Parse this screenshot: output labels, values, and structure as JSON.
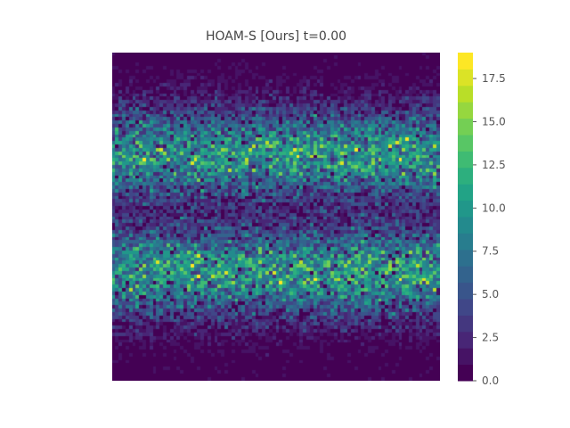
{
  "chart_data": {
    "type": "heatmap",
    "title": "HOAM-S [Ours] t=0.00",
    "xlabel": "",
    "ylabel": "",
    "grid_size": [
      96,
      96
    ],
    "pattern": "two horizontal noisy bands of high counts over a near-zero background",
    "bands": [
      {
        "center_fraction_from_top": 0.31,
        "peak_mean": 9.5,
        "spread_fraction": 0.09
      },
      {
        "center_fraction_from_top": 0.67,
        "peak_mean": 9.5,
        "spread_fraction": 0.09
      }
    ],
    "value_range": [
      0,
      19
    ],
    "colormap": "viridis",
    "colorbar": {
      "ticks": [
        0.0,
        2.5,
        5.0,
        7.5,
        10.0,
        12.5,
        15.0,
        17.5
      ],
      "tick_labels": [
        "0.0",
        "2.5",
        "5.0",
        "7.5",
        "10.0",
        "12.5",
        "15.0",
        "17.5"
      ],
      "vmin": 0,
      "vmax": 19,
      "levels": 20
    }
  }
}
